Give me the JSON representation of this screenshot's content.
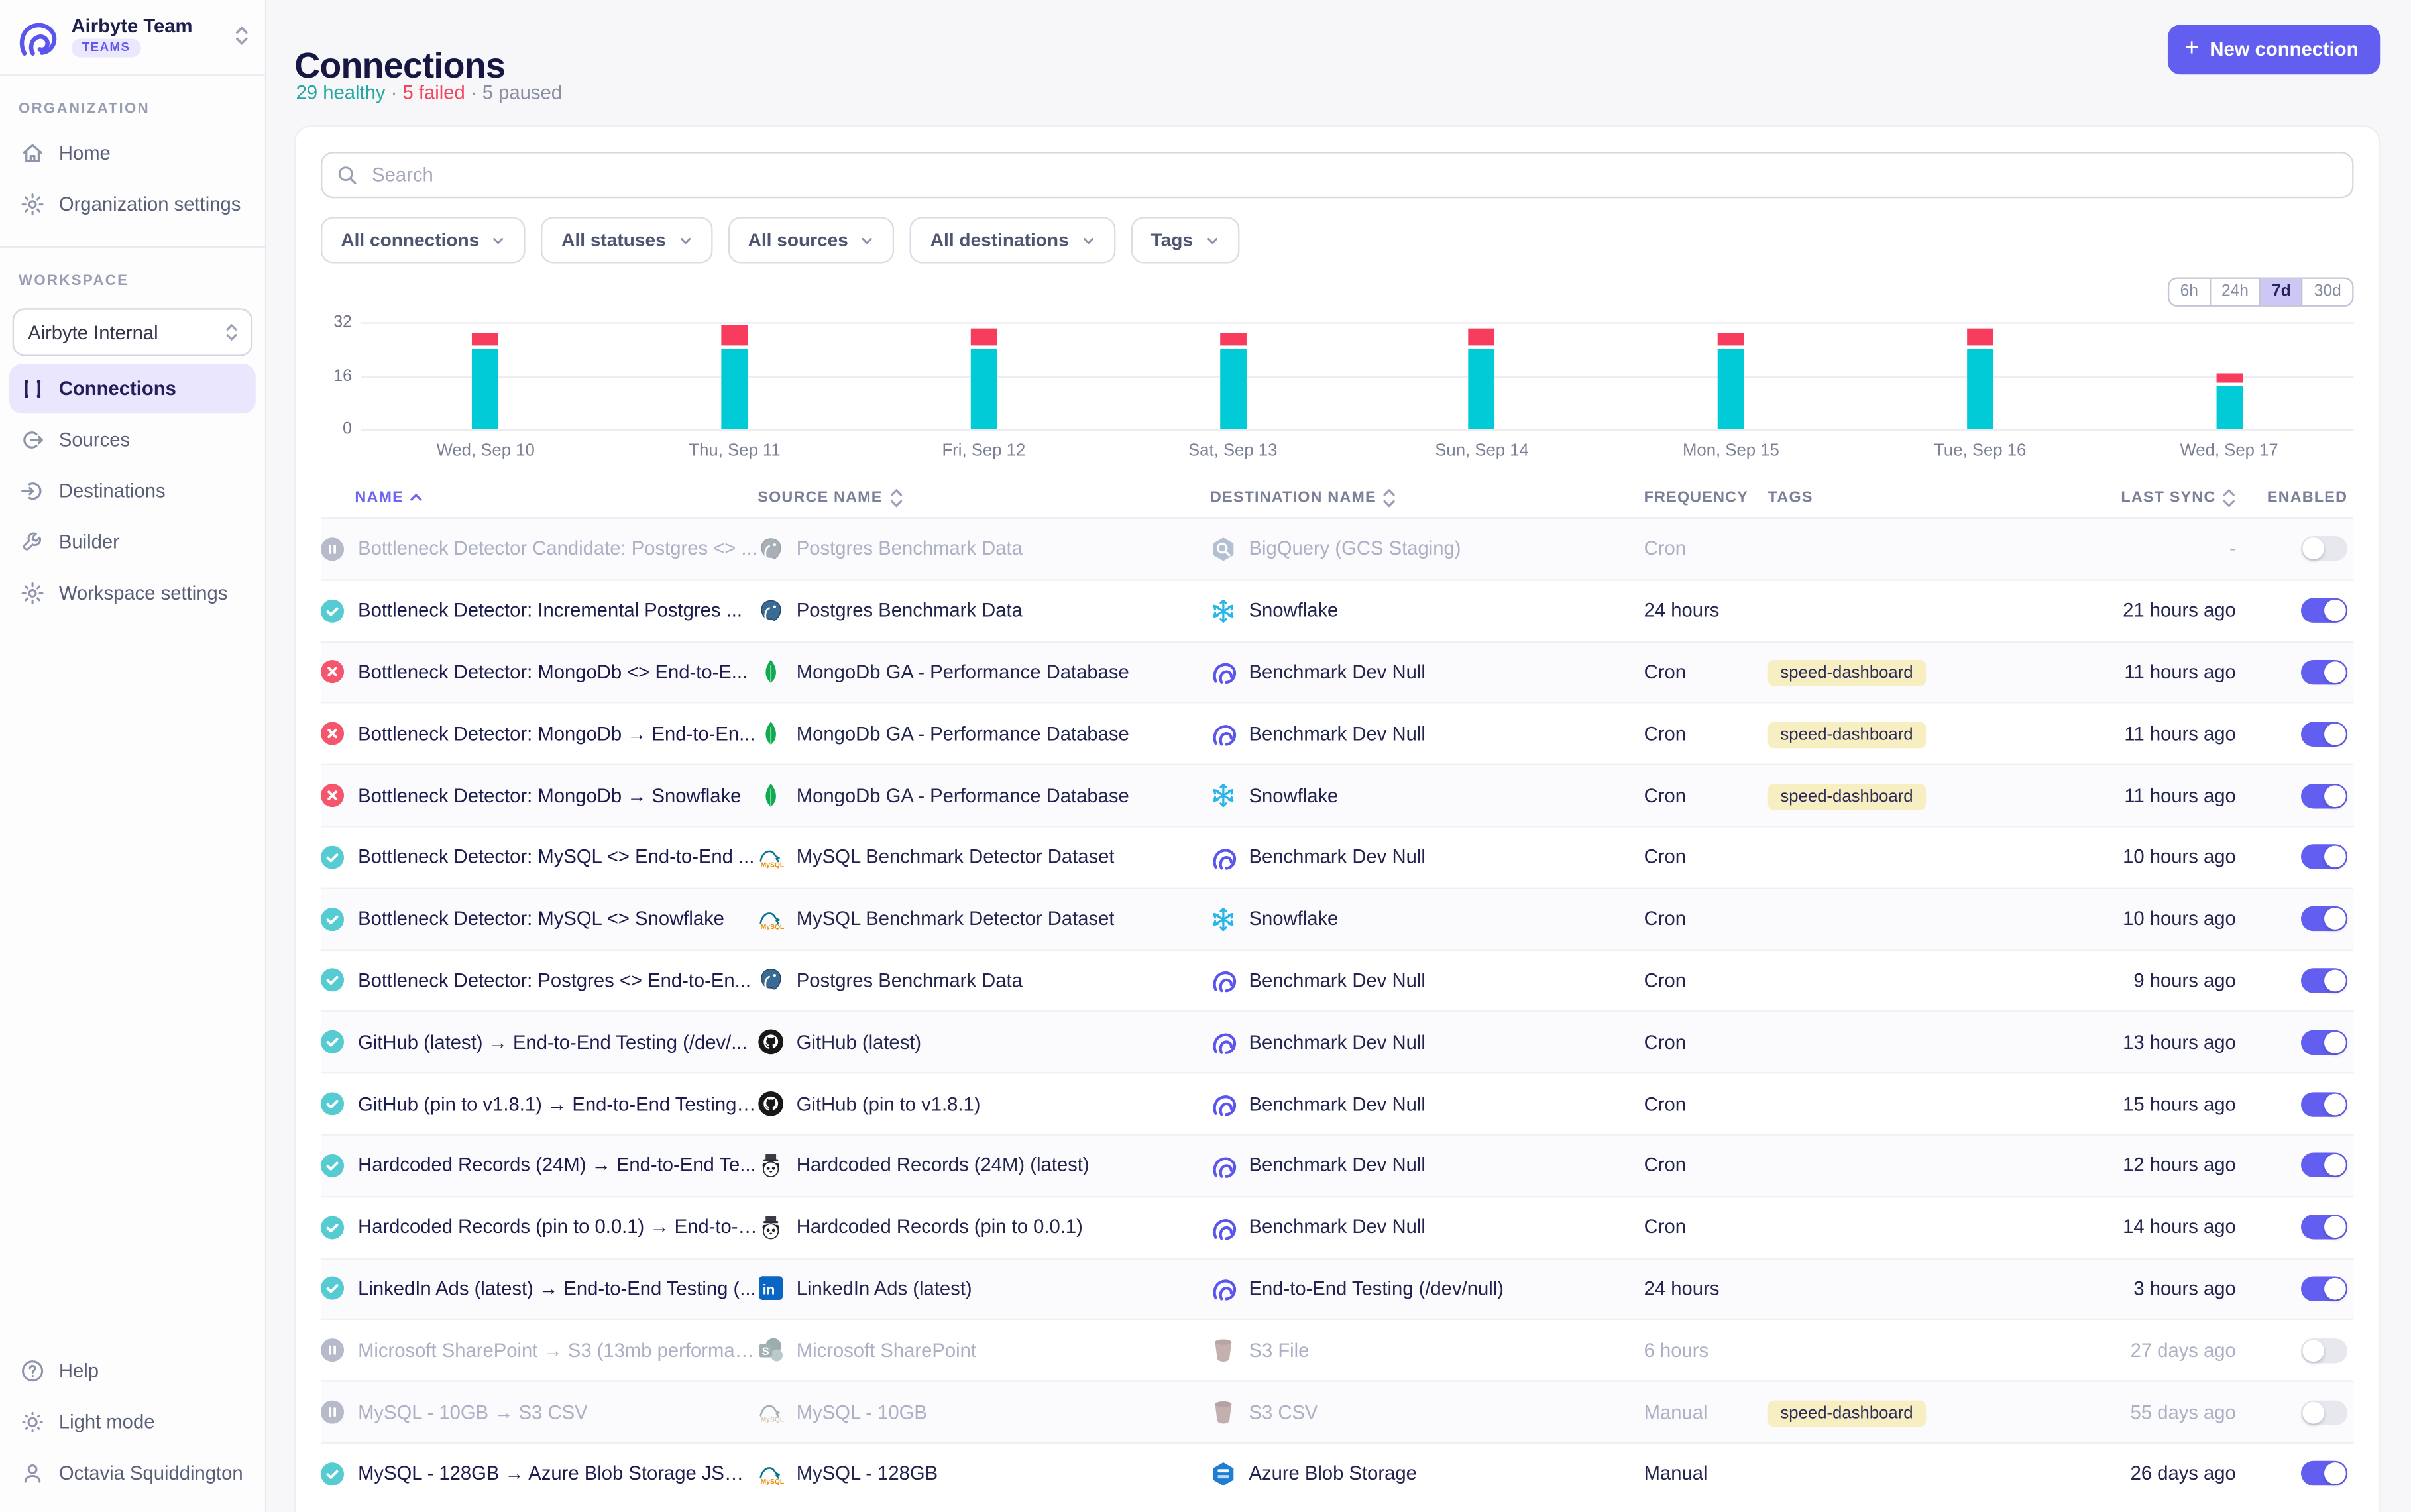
{
  "sidebar": {
    "team_name": "Airbyte Team",
    "team_badge": "TEAMS",
    "org_section_label": "ORGANIZATION",
    "org_items": [
      {
        "label": "Home",
        "icon": "home"
      },
      {
        "label": "Organization settings",
        "icon": "gear"
      }
    ],
    "workspace_section_label": "WORKSPACE",
    "workspace_selector_value": "Airbyte Internal",
    "workspace_items": [
      {
        "label": "Connections",
        "icon": "connections",
        "active": true
      },
      {
        "label": "Sources",
        "icon": "source",
        "active": false
      },
      {
        "label": "Destinations",
        "icon": "destination",
        "active": false
      },
      {
        "label": "Builder",
        "icon": "builder",
        "active": false
      },
      {
        "label": "Workspace settings",
        "icon": "gear",
        "active": false
      }
    ],
    "footer_items": [
      {
        "label": "Help",
        "icon": "help"
      },
      {
        "label": "Light mode",
        "icon": "sun"
      },
      {
        "label": "Octavia Squiddington",
        "icon": "user"
      }
    ]
  },
  "header": {
    "title": "Connections",
    "healthy": "29 healthy",
    "failed": "5 failed",
    "paused": "5 paused",
    "separator": "·",
    "new_connection_label": "New connection"
  },
  "search": {
    "placeholder": "Search"
  },
  "filters": [
    "All connections",
    "All statuses",
    "All sources",
    "All destinations",
    "Tags"
  ],
  "time_range": {
    "options": [
      "6h",
      "24h",
      "7d",
      "30d"
    ],
    "selected": "7d"
  },
  "chart_data": {
    "type": "bar",
    "stacked": true,
    "categories": [
      "Wed, Sep 10",
      "Thu, Sep 11",
      "Fri, Sep 12",
      "Sat, Sep 13",
      "Sun, Sep 14",
      "Mon, Sep 15",
      "Tue, Sep 16",
      "Wed, Sep 17"
    ],
    "series": [
      {
        "name": "succeeded",
        "color": "#00cbd6",
        "values": [
          24,
          24,
          24,
          24,
          24,
          24,
          24,
          13
        ]
      },
      {
        "name": "failed",
        "color": "#f83c5e",
        "values": [
          4,
          6,
          5,
          4,
          5,
          4,
          5,
          3
        ]
      }
    ],
    "title": "",
    "xlabel": "",
    "ylabel": "",
    "ylim": [
      0,
      32
    ],
    "yticks": [
      32,
      16,
      0
    ],
    "grid": true,
    "legend": "none"
  },
  "table": {
    "columns": [
      {
        "label": "NAME",
        "sort": "asc"
      },
      {
        "label": "SOURCE NAME",
        "sort": "both"
      },
      {
        "label": "DESTINATION NAME",
        "sort": "both"
      },
      {
        "label": "FREQUENCY",
        "sort": "none"
      },
      {
        "label": "TAGS",
        "sort": "none"
      },
      {
        "label": "LAST SYNC",
        "sort": "both"
      },
      {
        "label": "ENABLED",
        "sort": "none"
      }
    ],
    "rows": [
      {
        "status": "paused",
        "name": "Bottleneck Detector Candidate: Postgres <> ...",
        "source": {
          "icon": "postgres",
          "label": "Postgres Benchmark Data"
        },
        "destination": {
          "icon": "bigquery",
          "label": "BigQuery (GCS Staging)"
        },
        "frequency": "Cron",
        "tag": "",
        "last_sync": "-",
        "enabled": false
      },
      {
        "status": "healthy",
        "name": "Bottleneck Detector: Incremental Postgres ...",
        "source": {
          "icon": "postgres",
          "label": "Postgres Benchmark Data"
        },
        "destination": {
          "icon": "snowflake",
          "label": "Snowflake"
        },
        "frequency": "24 hours",
        "tag": "",
        "last_sync": "21 hours ago",
        "enabled": true
      },
      {
        "status": "failed",
        "name": "Bottleneck Detector: MongoDb <> End-to-E...",
        "source": {
          "icon": "mongodb",
          "label": "MongoDb GA - Performance Database"
        },
        "destination": {
          "icon": "airbyte",
          "label": "Benchmark Dev Null"
        },
        "frequency": "Cron",
        "tag": "speed-dashboard",
        "last_sync": "11 hours ago",
        "enabled": true
      },
      {
        "status": "failed",
        "name": "Bottleneck Detector: MongoDb → End-to-En...",
        "source": {
          "icon": "mongodb",
          "label": "MongoDb GA - Performance Database"
        },
        "destination": {
          "icon": "airbyte",
          "label": "Benchmark Dev Null"
        },
        "frequency": "Cron",
        "tag": "speed-dashboard",
        "last_sync": "11 hours ago",
        "enabled": true
      },
      {
        "status": "failed",
        "name": "Bottleneck Detector: MongoDb → Snowflake",
        "source": {
          "icon": "mongodb",
          "label": "MongoDb GA - Performance Database"
        },
        "destination": {
          "icon": "snowflake",
          "label": "Snowflake"
        },
        "frequency": "Cron",
        "tag": "speed-dashboard",
        "last_sync": "11 hours ago",
        "enabled": true
      },
      {
        "status": "healthy",
        "name": "Bottleneck Detector: MySQL <> End-to-End ...",
        "source": {
          "icon": "mysql",
          "label": "MySQL Benchmark Detector Dataset"
        },
        "destination": {
          "icon": "airbyte",
          "label": "Benchmark Dev Null"
        },
        "frequency": "Cron",
        "tag": "",
        "last_sync": "10 hours ago",
        "enabled": true
      },
      {
        "status": "healthy",
        "name": "Bottleneck Detector: MySQL <> Snowflake",
        "source": {
          "icon": "mysql",
          "label": "MySQL Benchmark Detector Dataset"
        },
        "destination": {
          "icon": "snowflake",
          "label": "Snowflake"
        },
        "frequency": "Cron",
        "tag": "",
        "last_sync": "10 hours ago",
        "enabled": true
      },
      {
        "status": "healthy",
        "name": "Bottleneck Detector: Postgres <> End-to-En...",
        "source": {
          "icon": "postgres",
          "label": "Postgres Benchmark Data"
        },
        "destination": {
          "icon": "airbyte",
          "label": "Benchmark Dev Null"
        },
        "frequency": "Cron",
        "tag": "",
        "last_sync": "9 hours ago",
        "enabled": true
      },
      {
        "status": "healthy",
        "name": "GitHub (latest) → End-to-End Testing (/dev/...",
        "source": {
          "icon": "github",
          "label": "GitHub (latest)"
        },
        "destination": {
          "icon": "airbyte",
          "label": "Benchmark Dev Null"
        },
        "frequency": "Cron",
        "tag": "",
        "last_sync": "13 hours ago",
        "enabled": true
      },
      {
        "status": "healthy",
        "name": "GitHub (pin to v1.8.1) → End-to-End Testing (...",
        "source": {
          "icon": "github",
          "label": "GitHub (pin to v1.8.1)"
        },
        "destination": {
          "icon": "airbyte",
          "label": "Benchmark Dev Null"
        },
        "frequency": "Cron",
        "tag": "",
        "last_sync": "15 hours ago",
        "enabled": true
      },
      {
        "status": "healthy",
        "name": "Hardcoded Records (24M) → End-to-End Te...",
        "source": {
          "icon": "hardcoded",
          "label": "Hardcoded Records (24M) (latest)"
        },
        "destination": {
          "icon": "airbyte",
          "label": "Benchmark Dev Null"
        },
        "frequency": "Cron",
        "tag": "",
        "last_sync": "12 hours ago",
        "enabled": true
      },
      {
        "status": "healthy",
        "name": "Hardcoded Records (pin to 0.0.1) → End-to-E...",
        "source": {
          "icon": "hardcoded",
          "label": "Hardcoded Records (pin to 0.0.1)"
        },
        "destination": {
          "icon": "airbyte",
          "label": "Benchmark Dev Null"
        },
        "frequency": "Cron",
        "tag": "",
        "last_sync": "14 hours ago",
        "enabled": true
      },
      {
        "status": "healthy",
        "name": "LinkedIn Ads (latest) → End-to-End Testing (...",
        "source": {
          "icon": "linkedin",
          "label": "LinkedIn Ads (latest)"
        },
        "destination": {
          "icon": "airbyte",
          "label": "End-to-End Testing (/dev/null)"
        },
        "frequency": "24 hours",
        "tag": "",
        "last_sync": "3 hours ago",
        "enabled": true
      },
      {
        "status": "paused",
        "name": "Microsoft SharePoint → S3 (13mb performan...",
        "source": {
          "icon": "sharepoint",
          "label": "Microsoft SharePoint"
        },
        "destination": {
          "icon": "s3",
          "label": "S3 File"
        },
        "frequency": "6 hours",
        "tag": "",
        "last_sync": "27 days ago",
        "enabled": false
      },
      {
        "status": "paused",
        "name": "MySQL - 10GB → S3 CSV",
        "source": {
          "icon": "mysql",
          "label": "MySQL - 10GB"
        },
        "destination": {
          "icon": "s3",
          "label": "S3 CSV"
        },
        "frequency": "Manual",
        "tag": "speed-dashboard",
        "last_sync": "55 days ago",
        "enabled": false
      },
      {
        "status": "healthy",
        "name": "MySQL - 128GB → Azure Blob Storage JSOn ...",
        "source": {
          "icon": "mysql",
          "label": "MySQL - 128GB"
        },
        "destination": {
          "icon": "azure",
          "label": "Azure Blob Storage"
        },
        "frequency": "Manual",
        "tag": "",
        "last_sync": "26 days ago",
        "enabled": true
      }
    ]
  },
  "colors": {
    "accent_purple": "#615ef0",
    "healthy_teal": "#56ccd2",
    "failed_red": "#f4566e",
    "paused_gray": "#b6bac9",
    "chart_teal": "#00cbd6",
    "chart_red": "#f83c5e",
    "tag_yellow": "#f7eec2"
  }
}
